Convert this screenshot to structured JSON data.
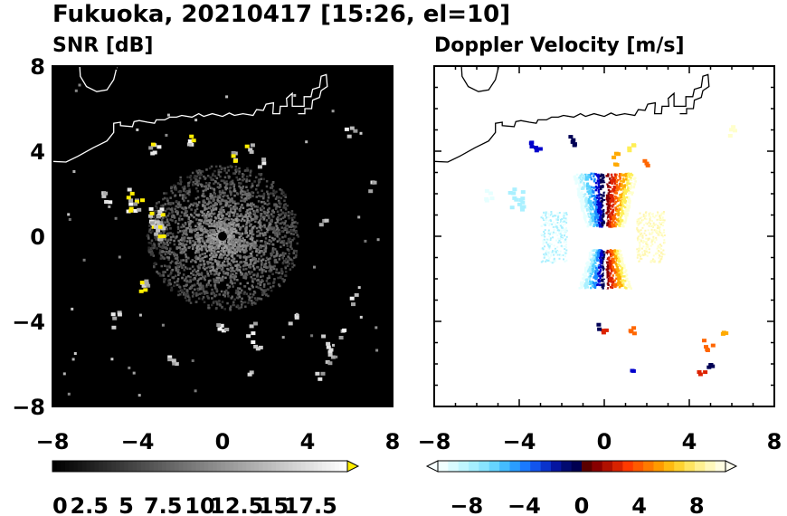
{
  "title": "Fukuoka, 20210417 [15:26, el=10]",
  "chart_data": [
    {
      "type": "heatmap",
      "title": "SNR [dB]",
      "xlim": [
        -8,
        8
      ],
      "ylim": [
        -8,
        8
      ],
      "x_ticks": [
        "−8",
        "−4",
        "0",
        "4",
        "8"
      ],
      "y_ticks": [
        "8",
        "4",
        "0",
        "−4",
        "−8"
      ],
      "background": "#000000",
      "colorbar": {
        "type": "grayscale",
        "ticks": [
          "0",
          "2.5",
          "5",
          "7.5",
          "10",
          "12.5",
          "15",
          "17.5"
        ],
        "extend": "max",
        "extend_color": "#ffee00"
      }
    },
    {
      "type": "heatmap",
      "title": "Doppler Velocity [m/s]",
      "xlim": [
        -8,
        8
      ],
      "ylim": [
        -8,
        8
      ],
      "x_ticks": [
        "−8",
        "−4",
        "0",
        "4",
        "8"
      ],
      "y_ticks": [
        "8",
        "4",
        "0",
        "−4",
        "−8"
      ],
      "background": "#ffffff",
      "colorbar": {
        "type": "diverging",
        "ticks": [
          "−8",
          "−4",
          "0",
          "4",
          "8"
        ],
        "extend": "both",
        "negative_colors": [
          "#e6ffff",
          "#aaf0ff",
          "#55d0ff",
          "#1a8cff",
          "#0000cc",
          "#000055"
        ],
        "positive_colors": [
          "#880000",
          "#dd2200",
          "#ff6600",
          "#ffaa00",
          "#ffee55",
          "#ffffcc"
        ]
      }
    }
  ]
}
